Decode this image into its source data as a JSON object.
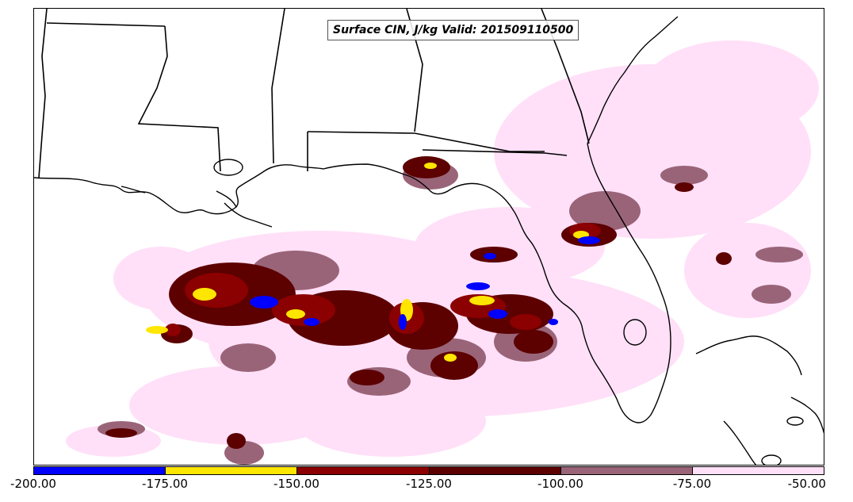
{
  "title": "Surface CIN, J/kg Valid: 201509110500",
  "colorbar": {
    "ticks": [
      "-200.00",
      "-175.00",
      "-150.00",
      "-125.00",
      "-100.00",
      "-75.00",
      "-50.00"
    ],
    "bins": [
      {
        "range": [
          -200,
          -175
        ],
        "color": "#0000ff"
      },
      {
        "range": [
          -175,
          -150
        ],
        "color": "#ffe600"
      },
      {
        "range": [
          -150,
          -125
        ],
        "color": "#8b0000"
      },
      {
        "range": [
          -125,
          -100
        ],
        "color": "#5c0000"
      },
      {
        "range": [
          -100,
          -75
        ],
        "color": "#9a6478"
      },
      {
        "range": [
          -75,
          -50
        ],
        "color": "#ffe0f8"
      }
    ]
  },
  "map": {
    "region": "Gulf of Mexico and southeastern United States",
    "field_colors": {
      "pink": "#ffe0f8",
      "mauve": "#9a6478",
      "darkred": "#5c0000",
      "red": "#8b0000",
      "yellow": "#ffe600",
      "blue": "#0000ff"
    }
  }
}
